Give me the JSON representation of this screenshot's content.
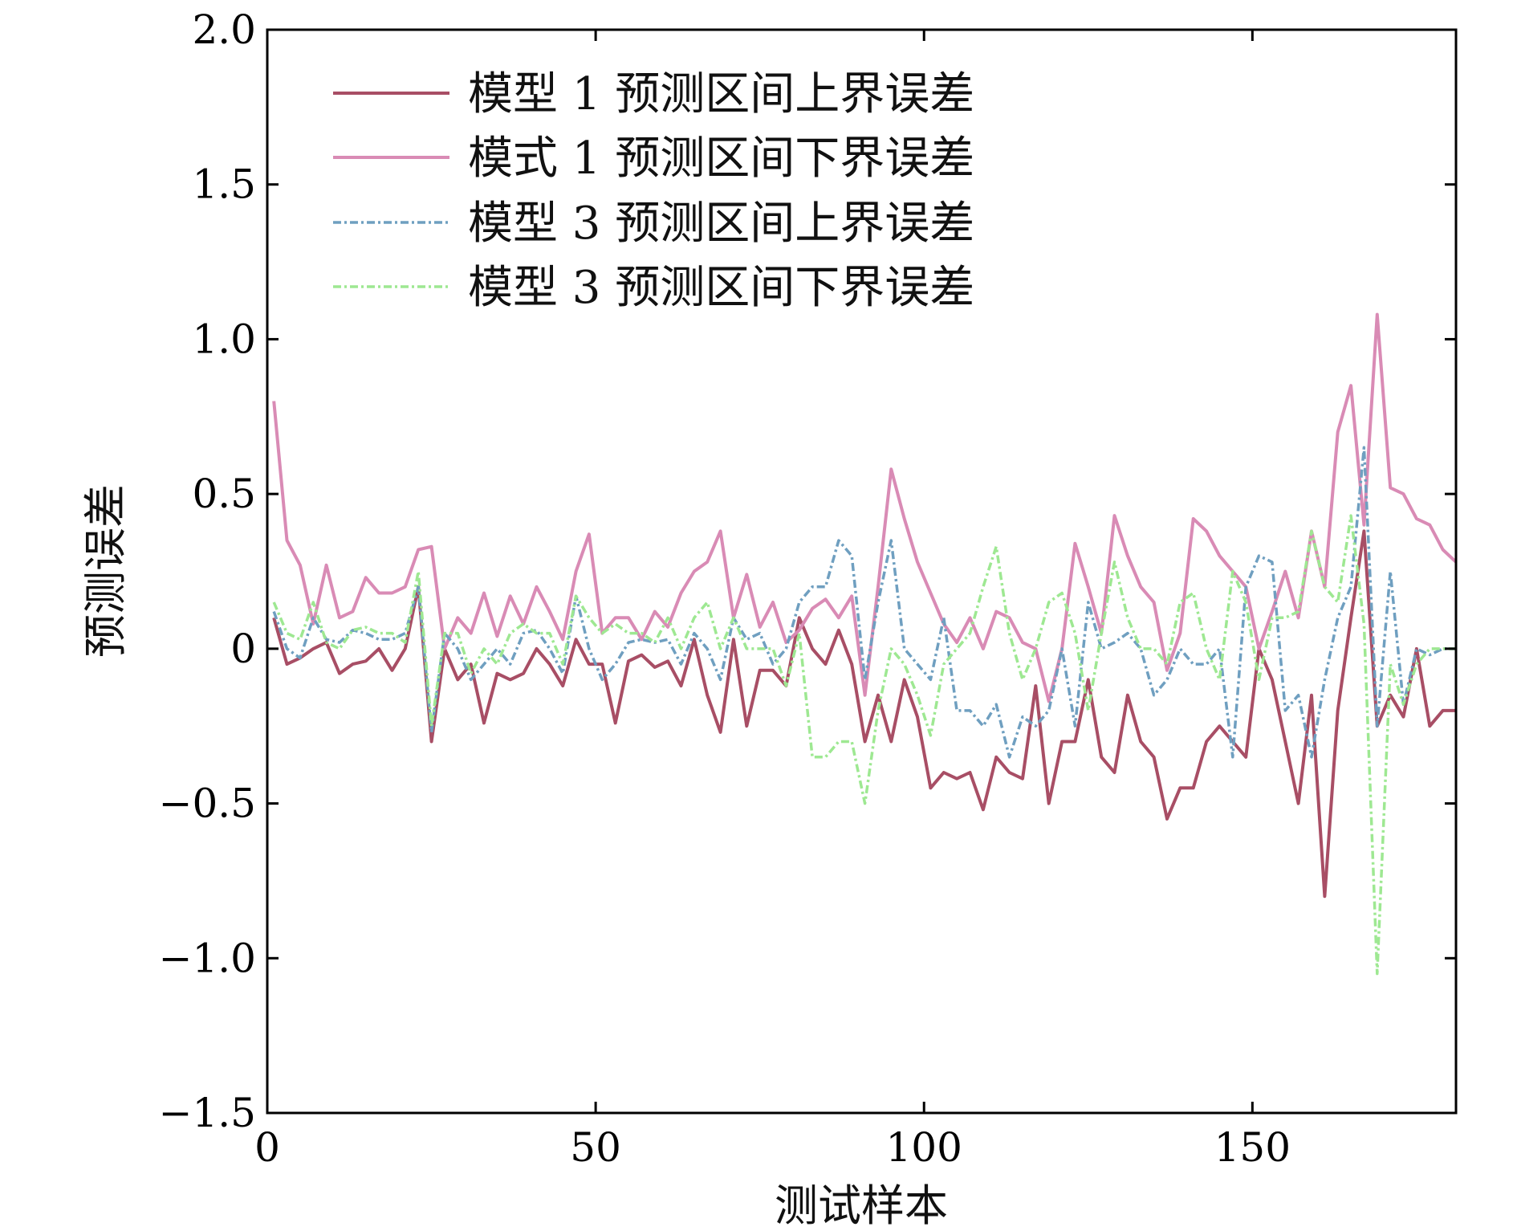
{
  "chart_data": {
    "type": "line",
    "title": "",
    "xlabel": "测试样本",
    "ylabel": "预测误差",
    "xlim": [
      0,
      181
    ],
    "ylim": [
      -1.5,
      2.0
    ],
    "xticks": [
      0,
      50,
      100,
      150
    ],
    "xtick_labels": [
      "0",
      "50",
      "100",
      "150"
    ],
    "yticks": [
      -1.5,
      -1.0,
      -0.5,
      0,
      0.5,
      1.0,
      1.5,
      2.0
    ],
    "ytick_labels": [
      "−1.5",
      "−1.0",
      "−0.5",
      "0",
      "0.5",
      "1.0",
      "1.5",
      "2.0"
    ],
    "grid": false,
    "legend_position": "top-left",
    "x": [
      1,
      3,
      5,
      7,
      9,
      11,
      13,
      15,
      17,
      19,
      21,
      23,
      25,
      27,
      29,
      31,
      33,
      35,
      37,
      39,
      41,
      43,
      45,
      47,
      49,
      51,
      53,
      55,
      57,
      59,
      61,
      63,
      65,
      67,
      69,
      71,
      73,
      75,
      77,
      79,
      81,
      83,
      85,
      87,
      89,
      91,
      93,
      95,
      97,
      99,
      101,
      103,
      105,
      107,
      109,
      111,
      113,
      115,
      117,
      119,
      121,
      123,
      125,
      127,
      129,
      131,
      133,
      135,
      137,
      139,
      141,
      143,
      145,
      147,
      149,
      151,
      153,
      155,
      157,
      159,
      161,
      163,
      165,
      167,
      169,
      171,
      173,
      175,
      177,
      179,
      181
    ],
    "series": [
      {
        "name": "模型 1 预测区间上界误差",
        "color": "#a84e65",
        "style": "solid",
        "values": [
          0.1,
          -0.05,
          -0.03,
          0.0,
          0.02,
          -0.08,
          -0.05,
          -0.04,
          0.0,
          -0.07,
          0.0,
          0.2,
          -0.3,
          0.0,
          -0.1,
          -0.05,
          -0.24,
          -0.08,
          -0.1,
          -0.08,
          0.0,
          -0.05,
          -0.12,
          0.03,
          -0.05,
          -0.05,
          -0.24,
          -0.04,
          -0.02,
          -0.06,
          -0.04,
          -0.12,
          0.03,
          -0.15,
          -0.27,
          0.03,
          -0.25,
          -0.07,
          -0.07,
          -0.12,
          0.1,
          0.0,
          -0.05,
          0.06,
          -0.05,
          -0.3,
          -0.15,
          -0.3,
          -0.1,
          -0.22,
          -0.45,
          -0.4,
          -0.42,
          -0.4,
          -0.52,
          -0.35,
          -0.4,
          -0.42,
          -0.12,
          -0.5,
          -0.3,
          -0.3,
          -0.1,
          -0.35,
          -0.4,
          -0.15,
          -0.3,
          -0.35,
          -0.55,
          -0.45,
          -0.45,
          -0.3,
          -0.25,
          -0.3,
          -0.35,
          0.0,
          -0.1,
          -0.3,
          -0.5,
          -0.15,
          -0.8,
          -0.2,
          0.1,
          0.38,
          -0.25,
          -0.15,
          -0.22,
          0.0,
          -0.25,
          -0.2,
          -0.2
        ]
      },
      {
        "name": "模式 1 预测区间下界误差",
        "color": "#d98bb5",
        "style": "solid",
        "values": [
          0.8,
          0.35,
          0.27,
          0.08,
          0.27,
          0.1,
          0.12,
          0.23,
          0.18,
          0.18,
          0.2,
          0.32,
          0.33,
          0.0,
          0.1,
          0.05,
          0.18,
          0.04,
          0.17,
          0.08,
          0.2,
          0.12,
          0.03,
          0.25,
          0.37,
          0.05,
          0.1,
          0.1,
          0.03,
          0.12,
          0.07,
          0.18,
          0.25,
          0.28,
          0.38,
          0.1,
          0.24,
          0.07,
          0.15,
          0.02,
          0.06,
          0.13,
          0.16,
          0.1,
          0.17,
          -0.15,
          0.2,
          0.58,
          0.42,
          0.28,
          0.18,
          0.08,
          0.02,
          0.1,
          0.0,
          0.12,
          0.1,
          0.02,
          0.0,
          -0.17,
          0.0,
          0.34,
          0.2,
          0.05,
          0.43,
          0.3,
          0.2,
          0.15,
          -0.07,
          0.05,
          0.42,
          0.38,
          0.3,
          0.25,
          0.2,
          0.0,
          0.12,
          0.25,
          0.1,
          0.38,
          0.2,
          0.7,
          0.85,
          0.4,
          1.08,
          0.52,
          0.5,
          0.42,
          0.4,
          0.32,
          0.28
        ]
      },
      {
        "name": "模型 3 预测区间上界误差",
        "color": "#6f9fc0",
        "style": "dashdot",
        "values": [
          0.12,
          0.0,
          -0.03,
          0.1,
          0.03,
          0.02,
          0.06,
          0.05,
          0.03,
          0.03,
          0.05,
          0.2,
          -0.27,
          0.05,
          0.0,
          -0.1,
          -0.05,
          0.0,
          -0.05,
          0.05,
          0.06,
          0.0,
          -0.08,
          0.17,
          0.0,
          -0.1,
          -0.05,
          0.02,
          0.03,
          0.02,
          0.03,
          -0.05,
          0.05,
          0.0,
          -0.1,
          0.1,
          0.03,
          0.05,
          -0.05,
          0.0,
          0.15,
          0.2,
          0.2,
          0.35,
          0.3,
          -0.1,
          0.15,
          0.35,
          0.0,
          -0.05,
          -0.1,
          0.1,
          -0.2,
          -0.2,
          -0.25,
          -0.18,
          -0.35,
          -0.22,
          -0.25,
          -0.2,
          0.0,
          -0.25,
          0.15,
          0.0,
          0.02,
          0.05,
          0.0,
          -0.15,
          -0.1,
          0.0,
          -0.05,
          -0.05,
          0.0,
          -0.35,
          0.2,
          0.3,
          0.28,
          -0.2,
          -0.15,
          -0.35,
          -0.1,
          0.1,
          0.2,
          0.65,
          -0.25,
          0.25,
          -0.18,
          0.0,
          -0.02,
          0.0,
          0.0
        ]
      },
      {
        "name": "模型 3 预测区间下界误差",
        "color": "#9ee892",
        "style": "dashdot",
        "values": [
          0.15,
          0.05,
          0.03,
          0.15,
          0.02,
          0.0,
          0.06,
          0.07,
          0.05,
          0.05,
          0.02,
          0.25,
          -0.25,
          0.05,
          0.05,
          -0.08,
          0.0,
          -0.05,
          0.05,
          0.08,
          0.05,
          0.05,
          -0.05,
          0.17,
          0.1,
          0.05,
          0.08,
          0.05,
          0.05,
          0.02,
          0.1,
          0.0,
          0.1,
          0.15,
          0.0,
          0.1,
          0.0,
          0.0,
          0.0,
          -0.12,
          0.05,
          -0.35,
          -0.35,
          -0.3,
          -0.3,
          -0.5,
          -0.2,
          0.0,
          -0.05,
          -0.15,
          -0.28,
          -0.05,
          0.0,
          0.05,
          0.2,
          0.33,
          0.05,
          -0.1,
          0.0,
          0.15,
          0.18,
          0.05,
          -0.2,
          0.05,
          0.28,
          0.1,
          0.0,
          0.0,
          -0.05,
          0.15,
          0.18,
          0.0,
          -0.1,
          0.25,
          0.15,
          -0.1,
          0.1,
          0.1,
          0.12,
          0.38,
          0.2,
          0.15,
          0.43,
          0.08,
          -1.05,
          -0.05,
          -0.18,
          -0.05,
          0.0,
          0.0,
          0.0
        ]
      }
    ]
  }
}
